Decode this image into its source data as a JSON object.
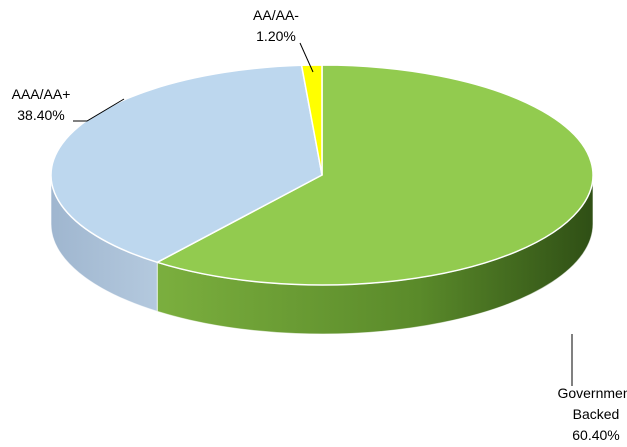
{
  "chart_data": {
    "type": "pie",
    "style": "3d",
    "title": "",
    "slices": [
      {
        "name": "Government Backed",
        "label_lines": [
          "Government",
          "Backed"
        ],
        "value_label": "60.40%",
        "value": 60.4,
        "color": "#92CB4F"
      },
      {
        "name": "AAA/AA+",
        "label_lines": [
          "AAA/AA+"
        ],
        "value_label": "38.40%",
        "value": 38.4,
        "color": "#BDD7EE"
      },
      {
        "name": "AA/AA-",
        "label_lines": [
          "AA/AA-"
        ],
        "value_label": "1.20%",
        "value": 1.2,
        "color": "#FFFF00"
      }
    ]
  }
}
